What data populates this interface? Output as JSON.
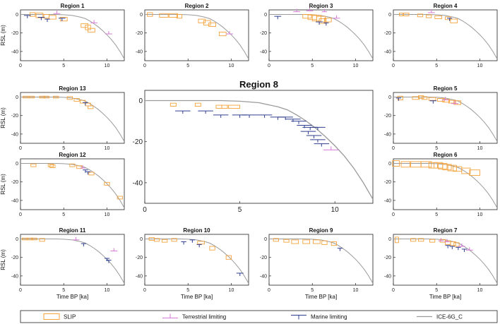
{
  "chart_data": {
    "type": "scatter",
    "shared": {
      "xlabel": "Time BP [ka]",
      "ylabel": "RSL (m)",
      "xlim": [
        0,
        12
      ],
      "ylim": [
        -50,
        5
      ],
      "xticks": [
        0,
        5,
        10
      ],
      "yticks": [
        0,
        -20,
        -40
      ]
    },
    "panels": [
      {
        "id": "r1",
        "title": "Region 1",
        "slip": [
          [
            1.4,
            0,
            0.6,
            4
          ],
          [
            2.2,
            -1,
            0.8,
            5
          ],
          [
            3,
            -2,
            0.6,
            4
          ],
          [
            3.7,
            -3,
            0.8,
            4
          ],
          [
            5,
            -5,
            0.8,
            4
          ],
          [
            7.4,
            -12,
            0.8,
            4
          ],
          [
            7.8,
            -14,
            0.6,
            5
          ],
          [
            8.2,
            -17,
            0.8,
            4
          ]
        ],
        "terrestrial": [
          [
            4.2,
            1,
            0.8
          ],
          [
            8.5,
            -9,
            0.8
          ],
          [
            10.2,
            -21,
            0.8
          ]
        ],
        "marine": [
          [
            0.8,
            -1,
            0.8
          ],
          [
            2.4,
            -3,
            0.8
          ],
          [
            3.1,
            -5,
            0.6
          ],
          [
            4.8,
            -4,
            0.8
          ]
        ]
      },
      {
        "id": "r2",
        "title": "Region 2",
        "slip": [
          [
            0.6,
            0,
            0.6,
            4
          ],
          [
            2.2,
            -1,
            1,
            4
          ],
          [
            3.3,
            -1,
            1,
            4
          ],
          [
            4,
            -2,
            0.6,
            4
          ],
          [
            6.6,
            -7,
            0.8,
            4
          ],
          [
            7.2,
            -9,
            0.8,
            5
          ],
          [
            7.8,
            -11,
            0.8,
            4
          ],
          [
            9,
            -21,
            0.8,
            4
          ]
        ],
        "terrestrial": [
          [
            9.8,
            -21,
            0.8
          ]
        ],
        "marine": []
      },
      {
        "id": "r3",
        "title": "Region 3",
        "slip": [
          [
            4.4,
            -2,
            1,
            4
          ],
          [
            5,
            -3,
            1,
            5
          ],
          [
            5.5,
            -4,
            1,
            6
          ],
          [
            6,
            -5,
            1,
            6
          ],
          [
            6.2,
            -7,
            0.8,
            5
          ],
          [
            6.8,
            -6,
            0.8,
            4
          ]
        ],
        "terrestrial": [
          [
            3.2,
            3,
            0.8
          ],
          [
            4.7,
            4,
            0.8
          ],
          [
            6.4,
            3,
            0.6
          ],
          [
            7.8,
            -4,
            0.8
          ]
        ],
        "marine": [
          [
            1,
            -2,
            0.8
          ],
          [
            5.8,
            -8,
            0.8
          ],
          [
            6.6,
            -9,
            0.6
          ]
        ]
      },
      {
        "id": "r4",
        "title": "Region 4",
        "slip": [
          [
            0.9,
            0,
            0.4,
            3
          ],
          [
            1.5,
            0,
            0.6,
            3
          ],
          [
            3.1,
            -1,
            0.6,
            3
          ],
          [
            4.1,
            -2,
            0.6,
            3
          ],
          [
            5.2,
            -3,
            0.8,
            3
          ],
          [
            6.3,
            -4,
            0.6,
            3
          ],
          [
            7,
            -7,
            0.8,
            4
          ]
        ],
        "terrestrial": [
          [
            4.4,
            2,
            0.8
          ]
        ],
        "marine": [
          [
            6.5,
            -4,
            0.6
          ]
        ]
      },
      {
        "id": "r13",
        "title": "Region 13",
        "slip": [
          [
            0.6,
            0,
            0.6,
            2
          ],
          [
            1.3,
            0,
            0.6,
            2
          ],
          [
            2.5,
            0,
            0.6,
            2
          ],
          [
            3,
            0,
            0.6,
            2
          ],
          [
            4.1,
            0,
            0.6,
            2
          ],
          [
            5.7,
            -1,
            0.6,
            3
          ],
          [
            6.5,
            -3,
            0.6,
            3
          ],
          [
            7.2,
            -5,
            0.6,
            3
          ],
          [
            7.8,
            -8,
            0.6,
            3
          ],
          [
            8.1,
            -11,
            0.6,
            3
          ]
        ],
        "terrestrial": [],
        "marine": [
          [
            7.5,
            -6,
            0.6
          ]
        ]
      },
      {
        "id": "r5",
        "title": "Region 5",
        "slip": [
          [
            0.8,
            -1,
            0.6,
            4
          ],
          [
            2.6,
            -1,
            0.8,
            3
          ],
          [
            3.2,
            0,
            0.6,
            3
          ],
          [
            3.6,
            -1,
            0.6,
            3
          ],
          [
            4.5,
            -2,
            0.8,
            3
          ],
          [
            5.5,
            -3,
            0.8,
            3
          ],
          [
            6.1,
            -4,
            0.8,
            3
          ],
          [
            6.8,
            -5,
            0.8,
            3
          ],
          [
            7.4,
            -6,
            0.8,
            4
          ]
        ],
        "terrestrial": [
          [
            6,
            -3,
            0.8
          ],
          [
            7.1,
            -7,
            0.8
          ]
        ],
        "marine": [
          [
            0.6,
            -1,
            0.6
          ],
          [
            4.6,
            -4,
            0.8
          ]
        ]
      },
      {
        "id": "r12",
        "title": "Region 12",
        "slip": [
          [
            1.5,
            -2,
            0.6,
            3
          ],
          [
            3.5,
            -2,
            0.6,
            3
          ],
          [
            3.7,
            -3,
            0.6,
            3
          ],
          [
            6,
            -2,
            0.6,
            3
          ],
          [
            6.8,
            -4,
            0.6,
            3
          ],
          [
            8.2,
            -11,
            0.6,
            3
          ],
          [
            10,
            -22,
            0.6,
            3
          ],
          [
            11.5,
            -37,
            0.6,
            3
          ]
        ],
        "terrestrial": [
          [
            7.2,
            -5,
            0.6
          ]
        ],
        "marine": [
          [
            7.5,
            -7,
            0.6
          ],
          [
            7.8,
            -9,
            0.6
          ]
        ]
      },
      {
        "id": "r6",
        "title": "Region 6",
        "slip": [
          [
            0.3,
            0,
            0.8,
            6
          ],
          [
            1.4,
            -1,
            1,
            6
          ],
          [
            2.6,
            -1,
            1.2,
            6
          ],
          [
            3.8,
            -1,
            1.2,
            6
          ],
          [
            4.6,
            -2,
            1,
            6
          ],
          [
            5.2,
            -2,
            1,
            6
          ],
          [
            5.7,
            -3,
            1,
            6
          ],
          [
            6.2,
            -4,
            1,
            6
          ],
          [
            6.8,
            -5,
            1,
            6
          ],
          [
            7.4,
            -6,
            1,
            5
          ],
          [
            8.4,
            -8,
            1,
            6
          ],
          [
            9.4,
            -10,
            1.2,
            6
          ]
        ],
        "terrestrial": [],
        "marine": []
      },
      {
        "id": "r11",
        "title": "Region 11",
        "slip": [
          [
            0.5,
            0,
            0.6,
            2
          ],
          [
            1.1,
            0,
            0.6,
            2
          ],
          [
            1.6,
            0,
            0.6,
            2
          ],
          [
            2.5,
            -1,
            0.6,
            3
          ]
        ],
        "terrestrial": [
          [
            6.4,
            -1,
            0.8
          ],
          [
            10.8,
            -13,
            0.8
          ]
        ],
        "marine": [
          [
            7.3,
            -5,
            0.6
          ],
          [
            10,
            -21,
            0.6
          ],
          [
            10.2,
            -23,
            0.6
          ]
        ]
      },
      {
        "id": "r10",
        "title": "Region 10",
        "slip": [
          [
            0.8,
            0,
            0.6,
            3
          ],
          [
            1.4,
            -1,
            0.6,
            3
          ],
          [
            2.3,
            -2,
            0.6,
            3
          ],
          [
            3.4,
            -1,
            0.6,
            3
          ],
          [
            6.5,
            -4,
            0.8,
            3
          ],
          [
            7.8,
            -10,
            0.6,
            4
          ],
          [
            9.7,
            -20,
            0.6,
            4
          ]
        ],
        "terrestrial": [],
        "marine": [
          [
            4.5,
            -3,
            0.6
          ],
          [
            5.5,
            -1,
            0.6
          ],
          [
            6.3,
            -6,
            0.6
          ],
          [
            11,
            -37,
            0.8
          ]
        ]
      },
      {
        "id": "r9",
        "title": "Region 9",
        "slip": [
          [
            0.8,
            -1,
            0.6,
            3
          ],
          [
            2,
            -2,
            0.6,
            3
          ],
          [
            3,
            -3,
            0.8,
            4
          ],
          [
            4.3,
            -3,
            0.8,
            4
          ],
          [
            5.5,
            -3,
            0.8,
            4
          ],
          [
            6.4,
            -4,
            0.6,
            4
          ],
          [
            7.5,
            -5,
            0.6,
            4
          ]
        ],
        "terrestrial": [],
        "marine": [
          [
            8.2,
            -10,
            0.6
          ]
        ]
      },
      {
        "id": "r7",
        "title": "Region 7",
        "slip": [
          [
            0.4,
            -1,
            0.4,
            6
          ],
          [
            2.3,
            -1,
            0.6,
            3
          ],
          [
            3.2,
            -1,
            0.6,
            3
          ],
          [
            4.5,
            -2,
            0.6,
            3
          ],
          [
            5.7,
            -2,
            0.6,
            3
          ],
          [
            6.3,
            -4,
            0.6,
            4
          ],
          [
            6.9,
            -5,
            0.6,
            4
          ],
          [
            7.3,
            -6,
            0.6,
            4
          ]
        ],
        "terrestrial": [
          [
            5.5,
            -2,
            0.6
          ],
          [
            6.2,
            -3,
            0.6
          ],
          [
            7.9,
            -8,
            0.8
          ],
          [
            8.8,
            -12,
            0.8
          ]
        ],
        "marine": [
          [
            6.3,
            -7,
            0.6
          ],
          [
            6.8,
            -8,
            0.6
          ],
          [
            7.5,
            -9,
            0.6
          ],
          [
            8.2,
            -11,
            0.6
          ]
        ]
      },
      {
        "id": "r8",
        "title": "Region 8",
        "slip": [
          [
            1.5,
            -2,
            0.3,
            1.5
          ],
          [
            2.8,
            -2,
            0.3,
            1.5
          ],
          [
            3.9,
            -3,
            0.3,
            1.5
          ],
          [
            4.2,
            -3,
            0.3,
            1.5
          ],
          [
            4.7,
            -3,
            0.6,
            1.5
          ]
        ],
        "terrestrial": [
          [
            9.8,
            -24,
            0.8
          ]
        ],
        "marine": [
          [
            2,
            -5,
            0.8
          ],
          [
            3.2,
            -5,
            0.8
          ],
          [
            4,
            -7,
            0.8
          ],
          [
            5,
            -7,
            0.8
          ],
          [
            5.5,
            -7,
            0.8
          ],
          [
            6.3,
            -7,
            0.8
          ],
          [
            7,
            -8,
            0.8
          ],
          [
            7.4,
            -8,
            0.8
          ],
          [
            7.8,
            -9,
            0.8
          ],
          [
            8.1,
            -10,
            0.8
          ],
          [
            8.4,
            -12,
            0.8
          ],
          [
            8.7,
            -13,
            0.8
          ],
          [
            9.1,
            -13,
            0.8
          ],
          [
            8.6,
            -15,
            0.8
          ],
          [
            8.9,
            -17,
            0.8
          ],
          [
            9.1,
            -19,
            0.8
          ],
          [
            9.3,
            -21,
            0.8
          ]
        ]
      }
    ],
    "gia_curve": {
      "name": "ICE-6G_C",
      "x": [
        0,
        1,
        2,
        3,
        4,
        5,
        6,
        7,
        7.5,
        8,
        8.5,
        9,
        9.5,
        10,
        10.5,
        11,
        11.5,
        12
      ],
      "y": [
        0,
        0,
        0,
        0,
        0,
        -0.3,
        -1,
        -3,
        -4.5,
        -7,
        -10,
        -13.5,
        -17.5,
        -22,
        -27,
        -33,
        -40,
        -48
      ]
    },
    "legend": [
      {
        "label": "SLIP",
        "color": "#f4a23b",
        "marker": "box"
      },
      {
        "label": "Terrestrial limiting",
        "color": "#d77ad8",
        "marker": "tick-up"
      },
      {
        "label": "Marine limiting",
        "color": "#2f3f8f",
        "marker": "tick-down"
      },
      {
        "label": "ICE-6G_C",
        "color": "#9b9b9b",
        "marker": "line"
      }
    ]
  }
}
